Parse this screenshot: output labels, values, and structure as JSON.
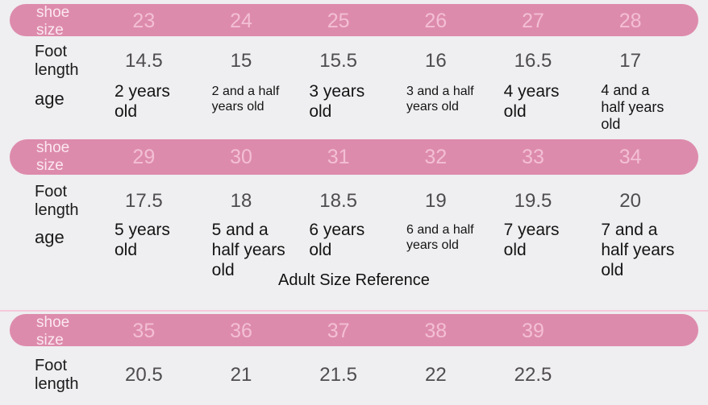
{
  "colors": {
    "background": "#efeef0",
    "bar_pink": "#dd8bac",
    "bar_number_pink": "#f3bfd4",
    "bar_label_pink": "#fbe7ef",
    "foot_value_gray": "#4e4c4f",
    "dark_text": "#141414",
    "divider_pink": "#f3cadb"
  },
  "kids_tables": [
    {
      "header_label": "shoe size",
      "sizes": [
        "23",
        "24",
        "25",
        "26",
        "27",
        "28"
      ],
      "foot_label": "Foot length",
      "foot_lengths": [
        "14.5",
        "15",
        "15.5",
        "16",
        "16.5",
        "17"
      ],
      "age_label": "age",
      "ages": [
        "2 years old",
        "2 and a half years old",
        "3 years old",
        "3 and a half years old",
        "4 years old",
        "4 and a half years old"
      ]
    },
    {
      "header_label": "shoe size",
      "sizes": [
        "29",
        "30",
        "31",
        "32",
        "33",
        "34"
      ],
      "foot_label": "Foot length",
      "foot_lengths": [
        "17.5",
        "18",
        "18.5",
        "19",
        "19.5",
        "20"
      ],
      "age_label": "age",
      "ages": [
        "5 years old",
        "5 and a half years old",
        "6 years old",
        "6 and a half years old",
        "7 years old",
        "7 and a half years old"
      ]
    }
  ],
  "adult_section": {
    "title": "Adult Size Reference",
    "table": {
      "header_label": "shoe size",
      "sizes": [
        "35",
        "36",
        "37",
        "38",
        "39"
      ],
      "foot_label": "Foot length",
      "foot_lengths": [
        "20.5",
        "21",
        "21.5",
        "22",
        "22.5"
      ]
    }
  },
  "chart_data": [
    {
      "type": "table",
      "rows": [
        [
          "shoe size",
          "23",
          "24",
          "25",
          "26",
          "27",
          "28"
        ],
        [
          "Foot length",
          "14.5",
          "15",
          "15.5",
          "16",
          "16.5",
          "17"
        ],
        [
          "age",
          "2 years old",
          "2 and a half years old",
          "3 years old",
          "3 and a half years old",
          "4 years old",
          "4 and a half years old"
        ]
      ]
    },
    {
      "type": "table",
      "rows": [
        [
          "shoe size",
          "29",
          "30",
          "31",
          "32",
          "33",
          "34"
        ],
        [
          "Foot length",
          "17.5",
          "18",
          "18.5",
          "19",
          "19.5",
          "20"
        ],
        [
          "age",
          "5 years old",
          "5 and a half years old",
          "6 years old",
          "6 and a half years old",
          "7 years old",
          "7 and a half years old"
        ]
      ]
    },
    {
      "type": "table",
      "title": "Adult Size Reference",
      "rows": [
        [
          "shoe size",
          "35",
          "36",
          "37",
          "38",
          "39"
        ],
        [
          "Foot length",
          "20.5",
          "21",
          "21.5",
          "22",
          "22.5"
        ]
      ]
    }
  ]
}
